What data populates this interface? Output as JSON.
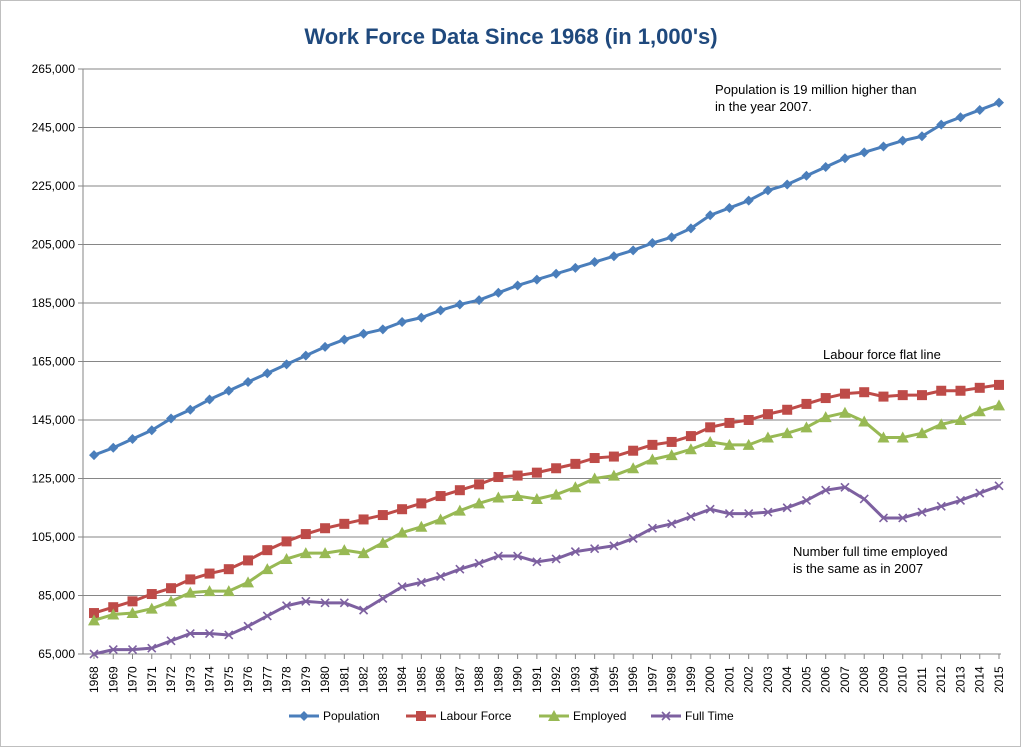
{
  "chart_data": {
    "type": "line",
    "title": "Work Force Data Since 1968 (in 1,000's)",
    "xlabel": "",
    "ylabel": "",
    "ylim": [
      65000,
      265000
    ],
    "yticks": [
      65000,
      85000,
      105000,
      125000,
      145000,
      165000,
      185000,
      205000,
      225000,
      245000,
      265000
    ],
    "ytick_labels": [
      "65,000",
      "85,000",
      "105,000",
      "125,000",
      "145,000",
      "165,000",
      "185,000",
      "205,000",
      "225,000",
      "245,000",
      "265,000"
    ],
    "grid": true,
    "legend_position": "bottom",
    "categories": [
      "1968",
      "1969",
      "1970",
      "1971",
      "1972",
      "1973",
      "1974",
      "1975",
      "1976",
      "1977",
      "1978",
      "1979",
      "1980",
      "1981",
      "1982",
      "1983",
      "1984",
      "1985",
      "1986",
      "1987",
      "1988",
      "1989",
      "1990",
      "1991",
      "1992",
      "1993",
      "1994",
      "1995",
      "1996",
      "1997",
      "1998",
      "1999",
      "2000",
      "2001",
      "2002",
      "2003",
      "2004",
      "2005",
      "2006",
      "2007",
      "2008",
      "2009",
      "2010",
      "2011",
      "2012",
      "2013",
      "2014",
      "2015"
    ],
    "series": [
      {
        "name": "Population",
        "color": "#4a7ebb",
        "marker": "diamond",
        "values": [
          133000,
          135500,
          138500,
          141500,
          145500,
          148500,
          152000,
          155000,
          158000,
          161000,
          164000,
          167000,
          170000,
          172500,
          174500,
          176000,
          178500,
          180000,
          182500,
          184500,
          186000,
          188500,
          191000,
          193000,
          195000,
          197000,
          199000,
          201000,
          203000,
          205500,
          207500,
          210500,
          215000,
          217500,
          220000,
          223500,
          225500,
          228500,
          231500,
          234500,
          236500,
          238500,
          240500,
          242000,
          246000,
          248500,
          251000,
          253500
        ]
      },
      {
        "name": "Labour Force",
        "color": "#be4b48",
        "marker": "square",
        "values": [
          79000,
          81000,
          83000,
          85500,
          87500,
          90500,
          92500,
          94000,
          97000,
          100500,
          103500,
          106000,
          108000,
          109500,
          111000,
          112500,
          114500,
          116500,
          119000,
          121000,
          123000,
          125500,
          126000,
          127000,
          128500,
          130000,
          132000,
          132500,
          134500,
          136500,
          137500,
          139500,
          142500,
          144000,
          145000,
          147000,
          148500,
          150500,
          152500,
          154000,
          154500,
          153000,
          153500,
          153500,
          155000,
          155000,
          156000,
          157000
        ]
      },
      {
        "name": "Employed",
        "color": "#98b954",
        "marker": "triangle",
        "values": [
          76500,
          78500,
          79000,
          80500,
          83000,
          86000,
          86500,
          86500,
          89500,
          94000,
          97500,
          99500,
          99500,
          100500,
          99500,
          103000,
          106500,
          108500,
          111000,
          114000,
          116500,
          118500,
          119000,
          118000,
          119500,
          122000,
          125000,
          126000,
          128500,
          131500,
          133000,
          135000,
          137500,
          136500,
          136500,
          139000,
          140500,
          142500,
          146000,
          147500,
          144500,
          139000,
          139000,
          140500,
          143500,
          145000,
          148000,
          150000
        ]
      },
      {
        "name": "Full Time",
        "color": "#7d60a0",
        "marker": "x",
        "values": [
          65000,
          66500,
          66500,
          67000,
          69500,
          72000,
          72000,
          71500,
          74500,
          78000,
          81500,
          83000,
          82500,
          82500,
          80000,
          84000,
          88000,
          89500,
          91500,
          94000,
          96000,
          98500,
          98500,
          96500,
          97500,
          100000,
          101000,
          102000,
          104500,
          108000,
          109500,
          112000,
          114500,
          113000,
          113000,
          113500,
          115000,
          117500,
          121000,
          122000,
          118000,
          111500,
          111500,
          113500,
          115500,
          117500,
          120000,
          122500
        ]
      }
    ],
    "annotations": [
      "Population  is 19 million higher than in the year 2007.",
      "Labour force flat line",
      "Number  full time employed is the same as in 2007"
    ]
  },
  "annotations_text": {
    "population_line1": "Population  is 19 million higher than",
    "population_line2": "in the year 2007.",
    "labour": "Labour force flat line",
    "fulltime_line1": "Number  full time employed",
    "fulltime_line2": "is the same as in 2007"
  }
}
